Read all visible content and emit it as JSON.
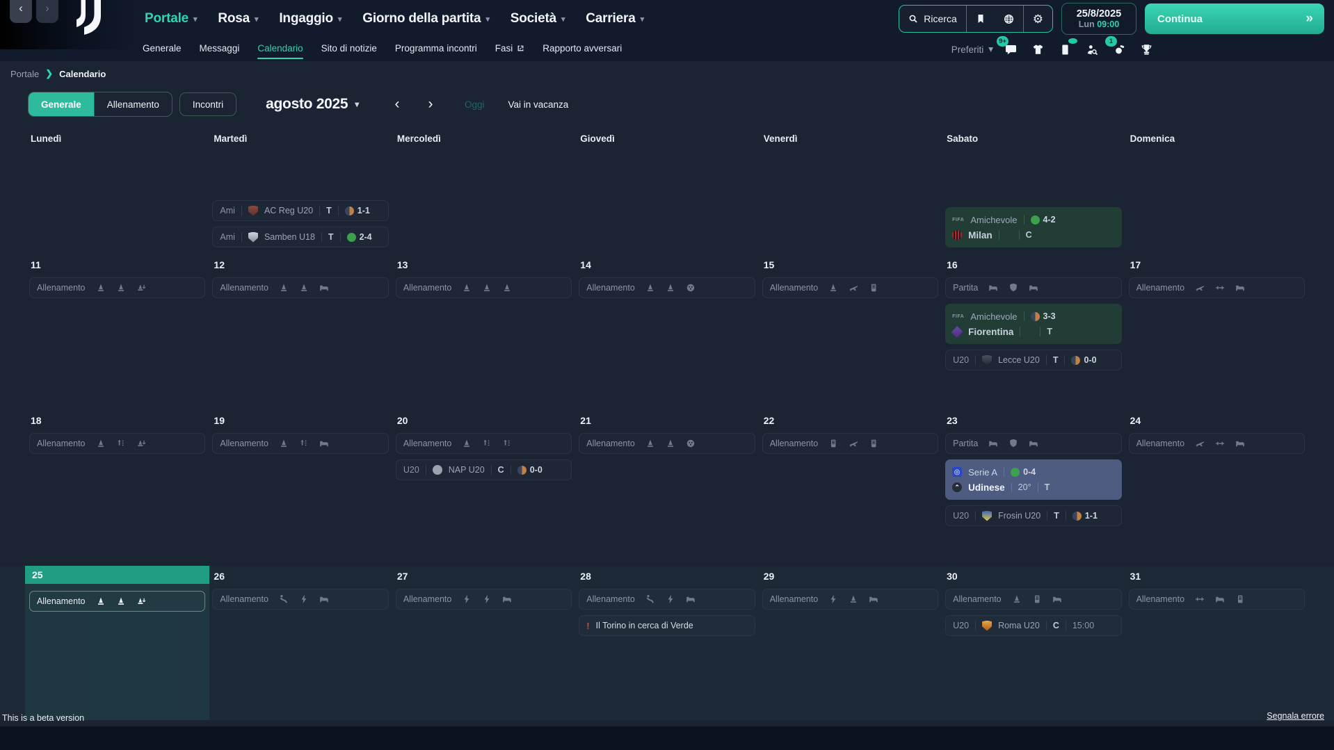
{
  "app": {
    "search_label": "Ricerca",
    "continue_label": "Continua",
    "favorites_label": "Preferiti",
    "beta_note": "This is a beta version",
    "report_error": "Segnala errore"
  },
  "header": {
    "nav": [
      {
        "label": "Portale",
        "active": true
      },
      {
        "label": "Rosa",
        "active": false
      },
      {
        "label": "Ingaggio",
        "active": false
      },
      {
        "label": "Giorno della partita",
        "active": false
      },
      {
        "label": "Società",
        "active": false
      },
      {
        "label": "Carriera",
        "active": false
      }
    ],
    "subnav": [
      {
        "label": "Generale",
        "active": false
      },
      {
        "label": "Messaggi",
        "active": false
      },
      {
        "label": "Calendario",
        "active": true
      },
      {
        "label": "Sito di notizie",
        "active": false
      },
      {
        "label": "Programma incontri",
        "active": false
      },
      {
        "label": "Fasi",
        "active": false,
        "external": true
      },
      {
        "label": "Rapporto avversari",
        "active": false
      }
    ],
    "clock": {
      "date": "25/8/2025",
      "weekday": "Lun",
      "time": "09:00"
    },
    "badges": {
      "inbox": "9+",
      "continue_queue": "1"
    }
  },
  "breadcrumb": {
    "root": "Portale",
    "current": "Calendario"
  },
  "toolbar": {
    "tabs": [
      {
        "label": "Generale",
        "active": true
      },
      {
        "label": "Allenamento",
        "active": false
      },
      {
        "label": "Incontri",
        "active": false
      }
    ],
    "month_label": "agosto 2025",
    "today_label": "Oggi",
    "vacation_label": "Vai in vacanza"
  },
  "calendar": {
    "day_headers": [
      "Lunedì",
      "Martedì",
      "Mercoledì",
      "Giovedì",
      "Venerdì",
      "Sabato",
      "Domenica"
    ],
    "weeks": [
      {
        "panel": false,
        "days": [
          {
            "date": "",
            "events": []
          },
          {
            "date": "",
            "events": [
              {
                "type": "fixture",
                "tag": "Ami",
                "crest": "acreg",
                "team": "AC Reg U20",
                "venue": "T",
                "outcome": "draw",
                "result": "1-1"
              },
              {
                "type": "fixture",
                "tag": "Ami",
                "crest": "samben",
                "team": "Samben U18",
                "venue": "T",
                "outcome": "win",
                "result": "2-4"
              }
            ]
          },
          {
            "date": "",
            "events": []
          },
          {
            "date": "",
            "events": []
          },
          {
            "date": "",
            "events": []
          },
          {
            "date": "",
            "events": [
              {
                "type": "card",
                "accent": "green",
                "comp_badge": "FIFA",
                "comp": "Amichevole",
                "outcome": "win",
                "result": "4-2",
                "crest": "milan",
                "team": "Milan",
                "detail": "",
                "venue": "C"
              }
            ]
          },
          {
            "date": "",
            "events": []
          }
        ]
      },
      {
        "panel": false,
        "days": [
          {
            "date": "11",
            "events": [
              {
                "type": "training",
                "label": "Allenamento",
                "icons": [
                  "cone",
                  "cone",
                  "cone-arrow"
                ]
              }
            ]
          },
          {
            "date": "12",
            "events": [
              {
                "type": "training",
                "label": "Allenamento",
                "icons": [
                  "cone",
                  "cone",
                  "bed"
                ]
              }
            ]
          },
          {
            "date": "13",
            "events": [
              {
                "type": "training",
                "label": "Allenamento",
                "icons": [
                  "cone",
                  "cone",
                  "cone"
                ]
              }
            ]
          },
          {
            "date": "14",
            "events": [
              {
                "type": "training",
                "label": "Allenamento",
                "icons": [
                  "cone",
                  "cone",
                  "ball"
                ]
              }
            ]
          },
          {
            "date": "15",
            "events": [
              {
                "type": "training",
                "label": "Allenamento",
                "icons": [
                  "cone",
                  "plane",
                  "doc"
                ]
              }
            ]
          },
          {
            "date": "16",
            "events": [
              {
                "type": "training",
                "label": "Partita",
                "icons": [
                  "bed",
                  "shield",
                  "bed"
                ]
              },
              {
                "type": "card",
                "accent": "green",
                "comp_badge": "FIFA",
                "comp": "Amichevole",
                "outcome": "draw",
                "result": "3-3",
                "crest": "fiorentina",
                "team": "Fiorentina",
                "detail": "",
                "venue": "T"
              },
              {
                "type": "fixture",
                "tag": "U20",
                "crest": "lecce",
                "team": "Lecce U20",
                "venue": "T",
                "outcome": "draw",
                "result": "0-0"
              }
            ]
          },
          {
            "date": "17",
            "events": [
              {
                "type": "training",
                "label": "Allenamento",
                "icons": [
                  "plane",
                  "stretch",
                  "bed"
                ]
              }
            ]
          }
        ]
      },
      {
        "panel": false,
        "days": [
          {
            "date": "18",
            "events": [
              {
                "type": "training",
                "label": "Allenamento",
                "icons": [
                  "cone",
                  "drill",
                  "cone-arrow"
                ]
              }
            ]
          },
          {
            "date": "19",
            "events": [
              {
                "type": "training",
                "label": "Allenamento",
                "icons": [
                  "cone",
                  "drill",
                  "bed"
                ]
              }
            ]
          },
          {
            "date": "20",
            "events": [
              {
                "type": "training",
                "label": "Allenamento",
                "icons": [
                  "cone",
                  "drill",
                  "drill"
                ]
              },
              {
                "type": "fixture",
                "tag": "U20",
                "crest": "nap",
                "team": "NAP U20",
                "venue": "C",
                "outcome": "draw",
                "result": "0-0"
              }
            ]
          },
          {
            "date": "21",
            "events": [
              {
                "type": "training",
                "label": "Allenamento",
                "icons": [
                  "cone",
                  "cone",
                  "ball"
                ]
              }
            ]
          },
          {
            "date": "22",
            "events": [
              {
                "type": "training",
                "label": "Allenamento",
                "icons": [
                  "doc",
                  "plane",
                  "doc"
                ]
              }
            ]
          },
          {
            "date": "23",
            "events": [
              {
                "type": "training",
                "label": "Partita",
                "icons": [
                  "bed",
                  "shield",
                  "bed"
                ]
              },
              {
                "type": "card",
                "accent": "blue",
                "comp_badge": "seriea",
                "comp": "Serie A",
                "outcome": "win",
                "result": "0-4",
                "crest": "udinese",
                "team": "Udinese",
                "detail": "20°",
                "venue": "T"
              },
              {
                "type": "fixture",
                "tag": "U20",
                "crest": "frosin",
                "team": "Frosin U20",
                "venue": "T",
                "outcome": "draw",
                "result": "1-1"
              }
            ]
          },
          {
            "date": "24",
            "events": [
              {
                "type": "training",
                "label": "Allenamento",
                "icons": [
                  "plane",
                  "stretch",
                  "bed"
                ]
              }
            ]
          }
        ]
      },
      {
        "panel": true,
        "days": [
          {
            "date": "25",
            "today": true,
            "events": [
              {
                "type": "training",
                "label": "Allenamento",
                "icons": [
                  "cone",
                  "cone",
                  "cone-arrow"
                ]
              }
            ]
          },
          {
            "date": "26",
            "events": [
              {
                "type": "training",
                "label": "Allenamento",
                "icons": [
                  "kick",
                  "bolt",
                  "bed"
                ]
              }
            ]
          },
          {
            "date": "27",
            "events": [
              {
                "type": "training",
                "label": "Allenamento",
                "icons": [
                  "bolt",
                  "bolt",
                  "bed"
                ]
              }
            ]
          },
          {
            "date": "28",
            "events": [
              {
                "type": "training",
                "label": "Allenamento",
                "icons": [
                  "kick",
                  "bolt",
                  "bed"
                ]
              },
              {
                "type": "news",
                "text": "Il Torino in cerca di Verde"
              }
            ]
          },
          {
            "date": "29",
            "events": [
              {
                "type": "training",
                "label": "Allenamento",
                "icons": [
                  "bolt",
                  "cone",
                  "bed"
                ]
              }
            ]
          },
          {
            "date": "30",
            "events": [
              {
                "type": "training",
                "label": "Allenamento",
                "icons": [
                  "cone",
                  "doc",
                  "bed"
                ]
              },
              {
                "type": "fixture",
                "tag": "U20",
                "crest": "roma",
                "team": "Roma U20",
                "venue": "C",
                "outcome": "none",
                "time": "15:00"
              }
            ]
          },
          {
            "date": "31",
            "events": [
              {
                "type": "training",
                "label": "Allenamento",
                "icons": [
                  "stretch",
                  "bed",
                  "doc"
                ]
              }
            ]
          }
        ]
      }
    ]
  },
  "colors": {
    "accent": "#2fd5b2",
    "win": "#3da04c",
    "draw": "#c28049",
    "card_green": "#223d35",
    "card_blue": "#4e5c82",
    "today": "#1f9e84"
  }
}
